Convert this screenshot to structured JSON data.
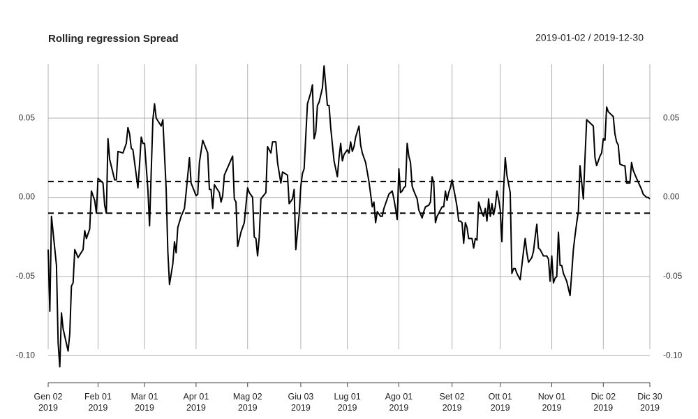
{
  "chart_data": {
    "type": "line",
    "title": "Rolling regression Spread",
    "subtitle": "2019-01-02 / 2019-12-30",
    "color": "#000000",
    "grid": true,
    "hlines": [
      0.01,
      -0.01
    ],
    "xlim": [
      "2019-01-02",
      "2019-12-30"
    ],
    "ylim": [
      -0.117,
      0.084
    ],
    "yticks": [
      0.05,
      {
        "value": 0,
        "label": "0.00"
      },
      -0.05,
      {
        "value": -0.1,
        "label": "-0.10"
      }
    ],
    "xticks": [
      {
        "value": "2019-01-02",
        "label": "Gen 02\n2019"
      },
      {
        "value": "2019-02-01",
        "label": "Feb 01\n2019"
      },
      {
        "value": "2019-03-01",
        "label": "Mar 01\n2019"
      },
      {
        "value": "2019-04-01",
        "label": "Apr 01\n2019"
      },
      {
        "value": "2019-05-02",
        "label": "Mag 02\n2019"
      },
      {
        "value": "2019-06-03",
        "label": "Giu 03\n2019"
      },
      {
        "value": "2019-07-01",
        "label": "Lug 01\n2019"
      },
      {
        "value": "2019-08-01",
        "label": "Ago 01\n2019"
      },
      {
        "value": "2019-09-02",
        "label": "Set 02\n2019"
      },
      {
        "value": "2019-10-01",
        "label": "Ott 01\n2019"
      },
      {
        "value": "2019-11-01",
        "label": "Nov 01\n2019"
      },
      {
        "value": "2019-12-02",
        "label": "Dic 02\n2019"
      },
      {
        "value": "2019-12-30",
        "label": "Dic 30\n2019"
      }
    ],
    "x": [
      "2019-01-02",
      "2019-01-03",
      "2019-01-04",
      "2019-01-07",
      "2019-01-08",
      "2019-01-09",
      "2019-01-10",
      "2019-01-11",
      "2019-01-14",
      "2019-01-15",
      "2019-01-16",
      "2019-01-17",
      "2019-01-18",
      "2019-01-20",
      "2019-01-23",
      "2019-01-24",
      "2019-01-25",
      "2019-01-27",
      "2019-01-28",
      "2019-01-30",
      "2019-01-31",
      "2019-02-01",
      "2019-02-04",
      "2019-02-05",
      "2019-02-06",
      "2019-02-07",
      "2019-02-08",
      "2019-02-11",
      "2019-02-12",
      "2019-02-13",
      "2019-02-16",
      "2019-02-18",
      "2019-02-19",
      "2019-02-20",
      "2019-02-21",
      "2019-02-22",
      "2019-02-25",
      "2019-02-26",
      "2019-02-27",
      "2019-02-28",
      "2019-03-01",
      "2019-03-03",
      "2019-03-04",
      "2019-03-05",
      "2019-03-06",
      "2019-03-07",
      "2019-03-08",
      "2019-03-11",
      "2019-03-12",
      "2019-03-14",
      "2019-03-15",
      "2019-03-16",
      "2019-03-18",
      "2019-03-19",
      "2019-03-20",
      "2019-03-21",
      "2019-03-23",
      "2019-03-25",
      "2019-03-26",
      "2019-03-28",
      "2019-03-29",
      "2019-04-01",
      "2019-04-02",
      "2019-04-03",
      "2019-04-05",
      "2019-04-08",
      "2019-04-09",
      "2019-04-10",
      "2019-04-11",
      "2019-04-12",
      "2019-04-15",
      "2019-04-16",
      "2019-04-17",
      "2019-04-18",
      "2019-04-23",
      "2019-04-24",
      "2019-04-25",
      "2019-04-26",
      "2019-04-28",
      "2019-04-30",
      "2019-05-02",
      "2019-05-03",
      "2019-05-05",
      "2019-05-06",
      "2019-05-07",
      "2019-05-08",
      "2019-05-09",
      "2019-05-10",
      "2019-05-13",
      "2019-05-14",
      "2019-05-16",
      "2019-05-17",
      "2019-05-19",
      "2019-05-20",
      "2019-05-22",
      "2019-05-23",
      "2019-05-26",
      "2019-05-27",
      "2019-05-29",
      "2019-05-30",
      "2019-05-31",
      "2019-06-02",
      "2019-06-03",
      "2019-06-04",
      "2019-06-05",
      "2019-06-07",
      "2019-06-09",
      "2019-06-10",
      "2019-06-11",
      "2019-06-12",
      "2019-06-13",
      "2019-06-14",
      "2019-06-16",
      "2019-06-17",
      "2019-06-19",
      "2019-06-20",
      "2019-06-21",
      "2019-06-23",
      "2019-06-25",
      "2019-06-26",
      "2019-06-27",
      "2019-06-28",
      "2019-06-29",
      "2019-07-01",
      "2019-07-02",
      "2019-07-03",
      "2019-07-04",
      "2019-07-05",
      "2019-07-06",
      "2019-07-08",
      "2019-07-09",
      "2019-07-10",
      "2019-07-12",
      "2019-07-14",
      "2019-07-15",
      "2019-07-16",
      "2019-07-17",
      "2019-07-18",
      "2019-07-19",
      "2019-07-21",
      "2019-07-22",
      "2019-07-23",
      "2019-07-25",
      "2019-07-26",
      "2019-07-28",
      "2019-07-29",
      "2019-07-30",
      "2019-07-31",
      "2019-08-01",
      "2019-08-02",
      "2019-08-03",
      "2019-08-04",
      "2019-08-05",
      "2019-08-06",
      "2019-08-07",
      "2019-08-08",
      "2019-08-09",
      "2019-08-10",
      "2019-08-12",
      "2019-08-13",
      "2019-08-15",
      "2019-08-16",
      "2019-08-17",
      "2019-08-19",
      "2019-08-20",
      "2019-08-21",
      "2019-08-22",
      "2019-08-23",
      "2019-08-24",
      "2019-08-26",
      "2019-08-27",
      "2019-08-28",
      "2019-08-29",
      "2019-08-30",
      "2019-08-31",
      "2019-09-01",
      "2019-09-02",
      "2019-09-04",
      "2019-09-05",
      "2019-09-06",
      "2019-09-07",
      "2019-09-08",
      "2019-09-09",
      "2019-09-10",
      "2019-09-11",
      "2019-09-12",
      "2019-09-14",
      "2019-09-15",
      "2019-09-16",
      "2019-09-17",
      "2019-09-18",
      "2019-09-20",
      "2019-09-21",
      "2019-09-22",
      "2019-09-23",
      "2019-09-24",
      "2019-09-25",
      "2019-09-26",
      "2019-09-27",
      "2019-09-28",
      "2019-09-29",
      "2019-09-30",
      "2019-10-01",
      "2019-10-02",
      "2019-10-03",
      "2019-10-04",
      "2019-10-05",
      "2019-10-07",
      "2019-10-08",
      "2019-10-09",
      "2019-10-10",
      "2019-10-11",
      "2019-10-13",
      "2019-10-15",
      "2019-10-16",
      "2019-10-17",
      "2019-10-18",
      "2019-10-20",
      "2019-10-21",
      "2019-10-22",
      "2019-10-23",
      "2019-10-24",
      "2019-10-25",
      "2019-10-26",
      "2019-10-27",
      "2019-10-29",
      "2019-10-30",
      "2019-10-31",
      "2019-11-01",
      "2019-11-02",
      "2019-11-03",
      "2019-11-04",
      "2019-11-05",
      "2019-11-06",
      "2019-11-07",
      "2019-11-08",
      "2019-11-10",
      "2019-11-12",
      "2019-11-13",
      "2019-11-14",
      "2019-11-15",
      "2019-11-16",
      "2019-11-17",
      "2019-11-18",
      "2019-11-20",
      "2019-11-21",
      "2019-11-22",
      "2019-11-26",
      "2019-11-27",
      "2019-11-28",
      "2019-11-29",
      "2019-11-30",
      "2019-12-01",
      "2019-12-02",
      "2019-12-03",
      "2019-12-04",
      "2019-12-05",
      "2019-12-06",
      "2019-12-08",
      "2019-12-09",
      "2019-12-10",
      "2019-12-11",
      "2019-12-12",
      "2019-12-14",
      "2019-12-15",
      "2019-12-16",
      "2019-12-18",
      "2019-12-19",
      "2019-12-20",
      "2019-12-22",
      "2019-12-25",
      "2019-12-26",
      "2019-12-28",
      "2019-12-29",
      "2019-12-30"
    ],
    "values": [
      -0.033,
      -0.072,
      -0.012,
      -0.043,
      -0.092,
      -0.107,
      -0.073,
      -0.083,
      -0.097,
      -0.086,
      -0.056,
      -0.054,
      -0.033,
      -0.038,
      -0.033,
      -0.021,
      -0.026,
      -0.02,
      0.004,
      -0.002,
      -0.01,
      0.012,
      0.009,
      -0.005,
      -0.01,
      0.037,
      0.024,
      0.011,
      0.011,
      0.029,
      0.028,
      0.034,
      0.044,
      0.04,
      0.031,
      0.03,
      0.006,
      0.021,
      0.038,
      0.034,
      0.034,
      0.005,
      -0.018,
      0.016,
      0.049,
      0.059,
      0.05,
      0.045,
      0.049,
      0.005,
      -0.034,
      -0.055,
      -0.042,
      -0.028,
      -0.035,
      -0.019,
      -0.012,
      -0.007,
      0.003,
      0.025,
      0.009,
      0.001,
      0.002,
      0.022,
      0.036,
      0.028,
      0.005,
      0.005,
      -0.007,
      0.008,
      0.003,
      -0.003,
      0.001,
      0.014,
      0.026,
      -0.001,
      -0.003,
      -0.031,
      -0.022,
      -0.016,
      0.006,
      0.003,
      0.0,
      -0.025,
      -0.026,
      -0.037,
      -0.025,
      -0.001,
      0.003,
      0.032,
      0.028,
      0.035,
      0.035,
      0.022,
      0.009,
      0.016,
      0.014,
      -0.004,
      -0.001,
      0.005,
      -0.033,
      -0.011,
      0.007,
      0.015,
      0.018,
      0.059,
      0.066,
      0.071,
      0.037,
      0.041,
      0.058,
      0.06,
      0.069,
      0.083,
      0.058,
      0.058,
      0.044,
      0.023,
      0.013,
      0.025,
      0.034,
      0.023,
      0.027,
      0.03,
      0.028,
      0.035,
      0.029,
      0.032,
      0.038,
      0.045,
      0.033,
      0.028,
      0.022,
      0.01,
      0.002,
      -0.006,
      -0.003,
      -0.016,
      -0.009,
      -0.012,
      -0.012,
      -0.007,
      -0.001,
      0.002,
      0.004,
      -0.001,
      -0.007,
      -0.014,
      0.018,
      0.003,
      0.004,
      0.006,
      0.007,
      0.034,
      0.026,
      0.022,
      0.007,
      0.004,
      -0.001,
      -0.008,
      -0.013,
      -0.009,
      -0.006,
      -0.005,
      -0.003,
      0.013,
      0.009,
      -0.016,
      -0.012,
      -0.008,
      -0.006,
      -0.006,
      0.004,
      -0.002,
      0.003,
      0.006,
      0.011,
      0.0,
      -0.006,
      -0.015,
      -0.015,
      -0.016,
      -0.029,
      -0.016,
      -0.019,
      -0.026,
      -0.026,
      -0.032,
      -0.026,
      -0.027,
      -0.003,
      -0.01,
      -0.012,
      -0.007,
      -0.015,
      -0.001,
      -0.012,
      -0.004,
      -0.011,
      -0.006,
      0.004,
      -0.001,
      -0.008,
      -0.028,
      0.005,
      0.025,
      0.014,
      0.003,
      -0.048,
      -0.045,
      -0.045,
      -0.048,
      -0.052,
      -0.034,
      -0.026,
      -0.035,
      -0.041,
      -0.038,
      -0.034,
      -0.025,
      -0.017,
      -0.032,
      -0.033,
      -0.035,
      -0.037,
      -0.037,
      -0.039,
      -0.053,
      -0.037,
      -0.054,
      -0.051,
      -0.05,
      -0.022,
      -0.043,
      -0.043,
      -0.048,
      -0.053,
      -0.062,
      -0.048,
      -0.033,
      -0.024,
      -0.016,
      -0.009,
      0.02,
      -0.001,
      0.025,
      0.049,
      0.045,
      0.025,
      0.02,
      0.023,
      0.026,
      0.028,
      0.037,
      0.036,
      0.057,
      0.054,
      0.053,
      0.051,
      0.04,
      0.035,
      0.033,
      0.021,
      0.02,
      0.02,
      0.009,
      0.009,
      0.022,
      0.017,
      0.012,
      0.005,
      0.002,
      0.0,
      0.0,
      -0.001
    ]
  }
}
